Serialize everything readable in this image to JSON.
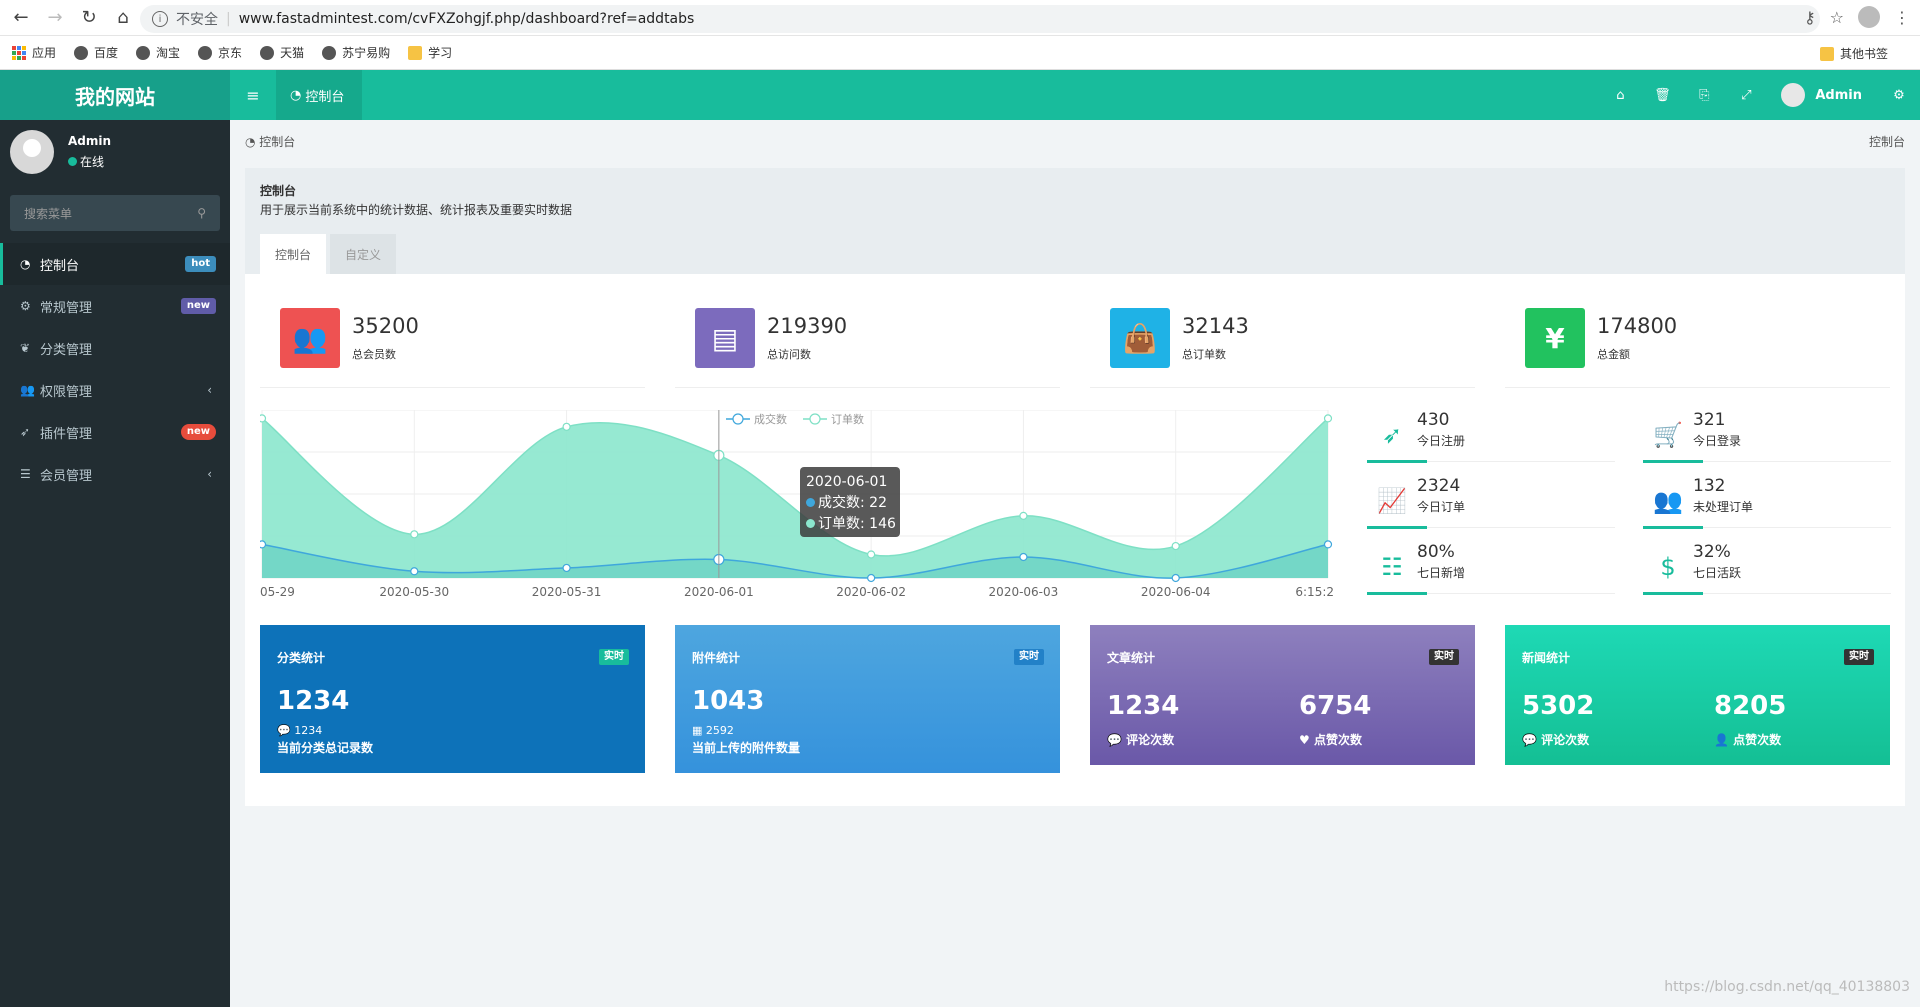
{
  "browser": {
    "insecure": "不安全",
    "url": "www.fastadmintest.com/cvFXZohgjf.php/dashboard?ref=addtabs",
    "bookmarks": [
      "应用",
      "百度",
      "淘宝",
      "京东",
      "天猫",
      "苏宁易购",
      "学习"
    ],
    "other_bookmarks": "其他书签"
  },
  "app": {
    "site_name": "我的网站",
    "tab_label": "控制台",
    "user": "Admin",
    "user_status": "在线",
    "search_placeholder": "搜索菜单"
  },
  "sidebar": {
    "items": [
      {
        "label": "控制台",
        "badge": "hot"
      },
      {
        "label": "常规管理",
        "badge": "new"
      },
      {
        "label": "分类管理"
      },
      {
        "label": "权限管理",
        "caret": "‹"
      },
      {
        "label": "插件管理",
        "badge": "new"
      },
      {
        "label": "会员管理",
        "caret": "‹"
      }
    ]
  },
  "content": {
    "breadcrumb": "控制台",
    "breadcrumb_right": "控制台",
    "title": "控制台",
    "description": "用于展示当前系统中的统计数据、统计报表及重要实时数据",
    "tabs": [
      "控制台",
      "自定义"
    ]
  },
  "stats": [
    {
      "value": "35200",
      "label": "总会员数",
      "color": "#ee5252"
    },
    {
      "value": "219390",
      "label": "总访问数",
      "color": "#7c6bbd"
    },
    {
      "value": "32143",
      "label": "总订单数",
      "color": "#1fb2e6"
    },
    {
      "value": "174800",
      "label": "总金额",
      "color": "#22c25f",
      "symbol": "¥"
    }
  ],
  "chart_data": {
    "type": "area",
    "x": [
      "05-29",
      "2020-05-30",
      "2020-05-31",
      "2020-06-01",
      "2020-06-02",
      "2020-06-03",
      "2020-06-04",
      "6:15:2"
    ],
    "series": [
      {
        "name": "成交数",
        "values": [
          40,
          8,
          12,
          22,
          0,
          25,
          0,
          40
        ],
        "color": "#3fa7dc"
      },
      {
        "name": "订单数",
        "values": [
          190,
          52,
          180,
          146,
          28,
          74,
          38,
          190
        ],
        "color": "#8be7cd"
      }
    ],
    "ylim": [
      0,
      200
    ],
    "legend": "top-center",
    "tooltip": {
      "date": "2020-06-01",
      "line1": "成交数: 22",
      "line2": "订单数: 146"
    }
  },
  "mini_stats": [
    {
      "value": "430",
      "label": "今日注册",
      "icon": "rocket-icon"
    },
    {
      "value": "321",
      "label": "今日登录",
      "icon": "cart-icon"
    },
    {
      "value": "2324",
      "label": "今日订单",
      "icon": "area-chart-icon"
    },
    {
      "value": "132",
      "label": "未处理订单",
      "icon": "users-icon"
    },
    {
      "value": "80%",
      "label": "七日新增",
      "icon": "list-icon"
    },
    {
      "value": "32%",
      "label": "七日活跃",
      "icon": "dollar-icon"
    }
  ],
  "cards": [
    {
      "title": "分类统计",
      "tag": "实时",
      "big": "1234",
      "small": "1234",
      "desc": "当前分类总记录数"
    },
    {
      "title": "附件统计",
      "tag": "实时",
      "big": "1043",
      "small": "2592",
      "desc": "当前上传的附件数量"
    },
    {
      "title": "文章统计",
      "tag": "实时",
      "a": "1234",
      "a_label": "评论次数",
      "b": "6754",
      "b_label": "点赞次数"
    },
    {
      "title": "新闻统计",
      "tag": "实时",
      "a": "5302",
      "a_label": "评论次数",
      "b": "8205",
      "b_label": "点赞次数"
    }
  ],
  "watermark": "https://blog.csdn.net/qq_40138803"
}
